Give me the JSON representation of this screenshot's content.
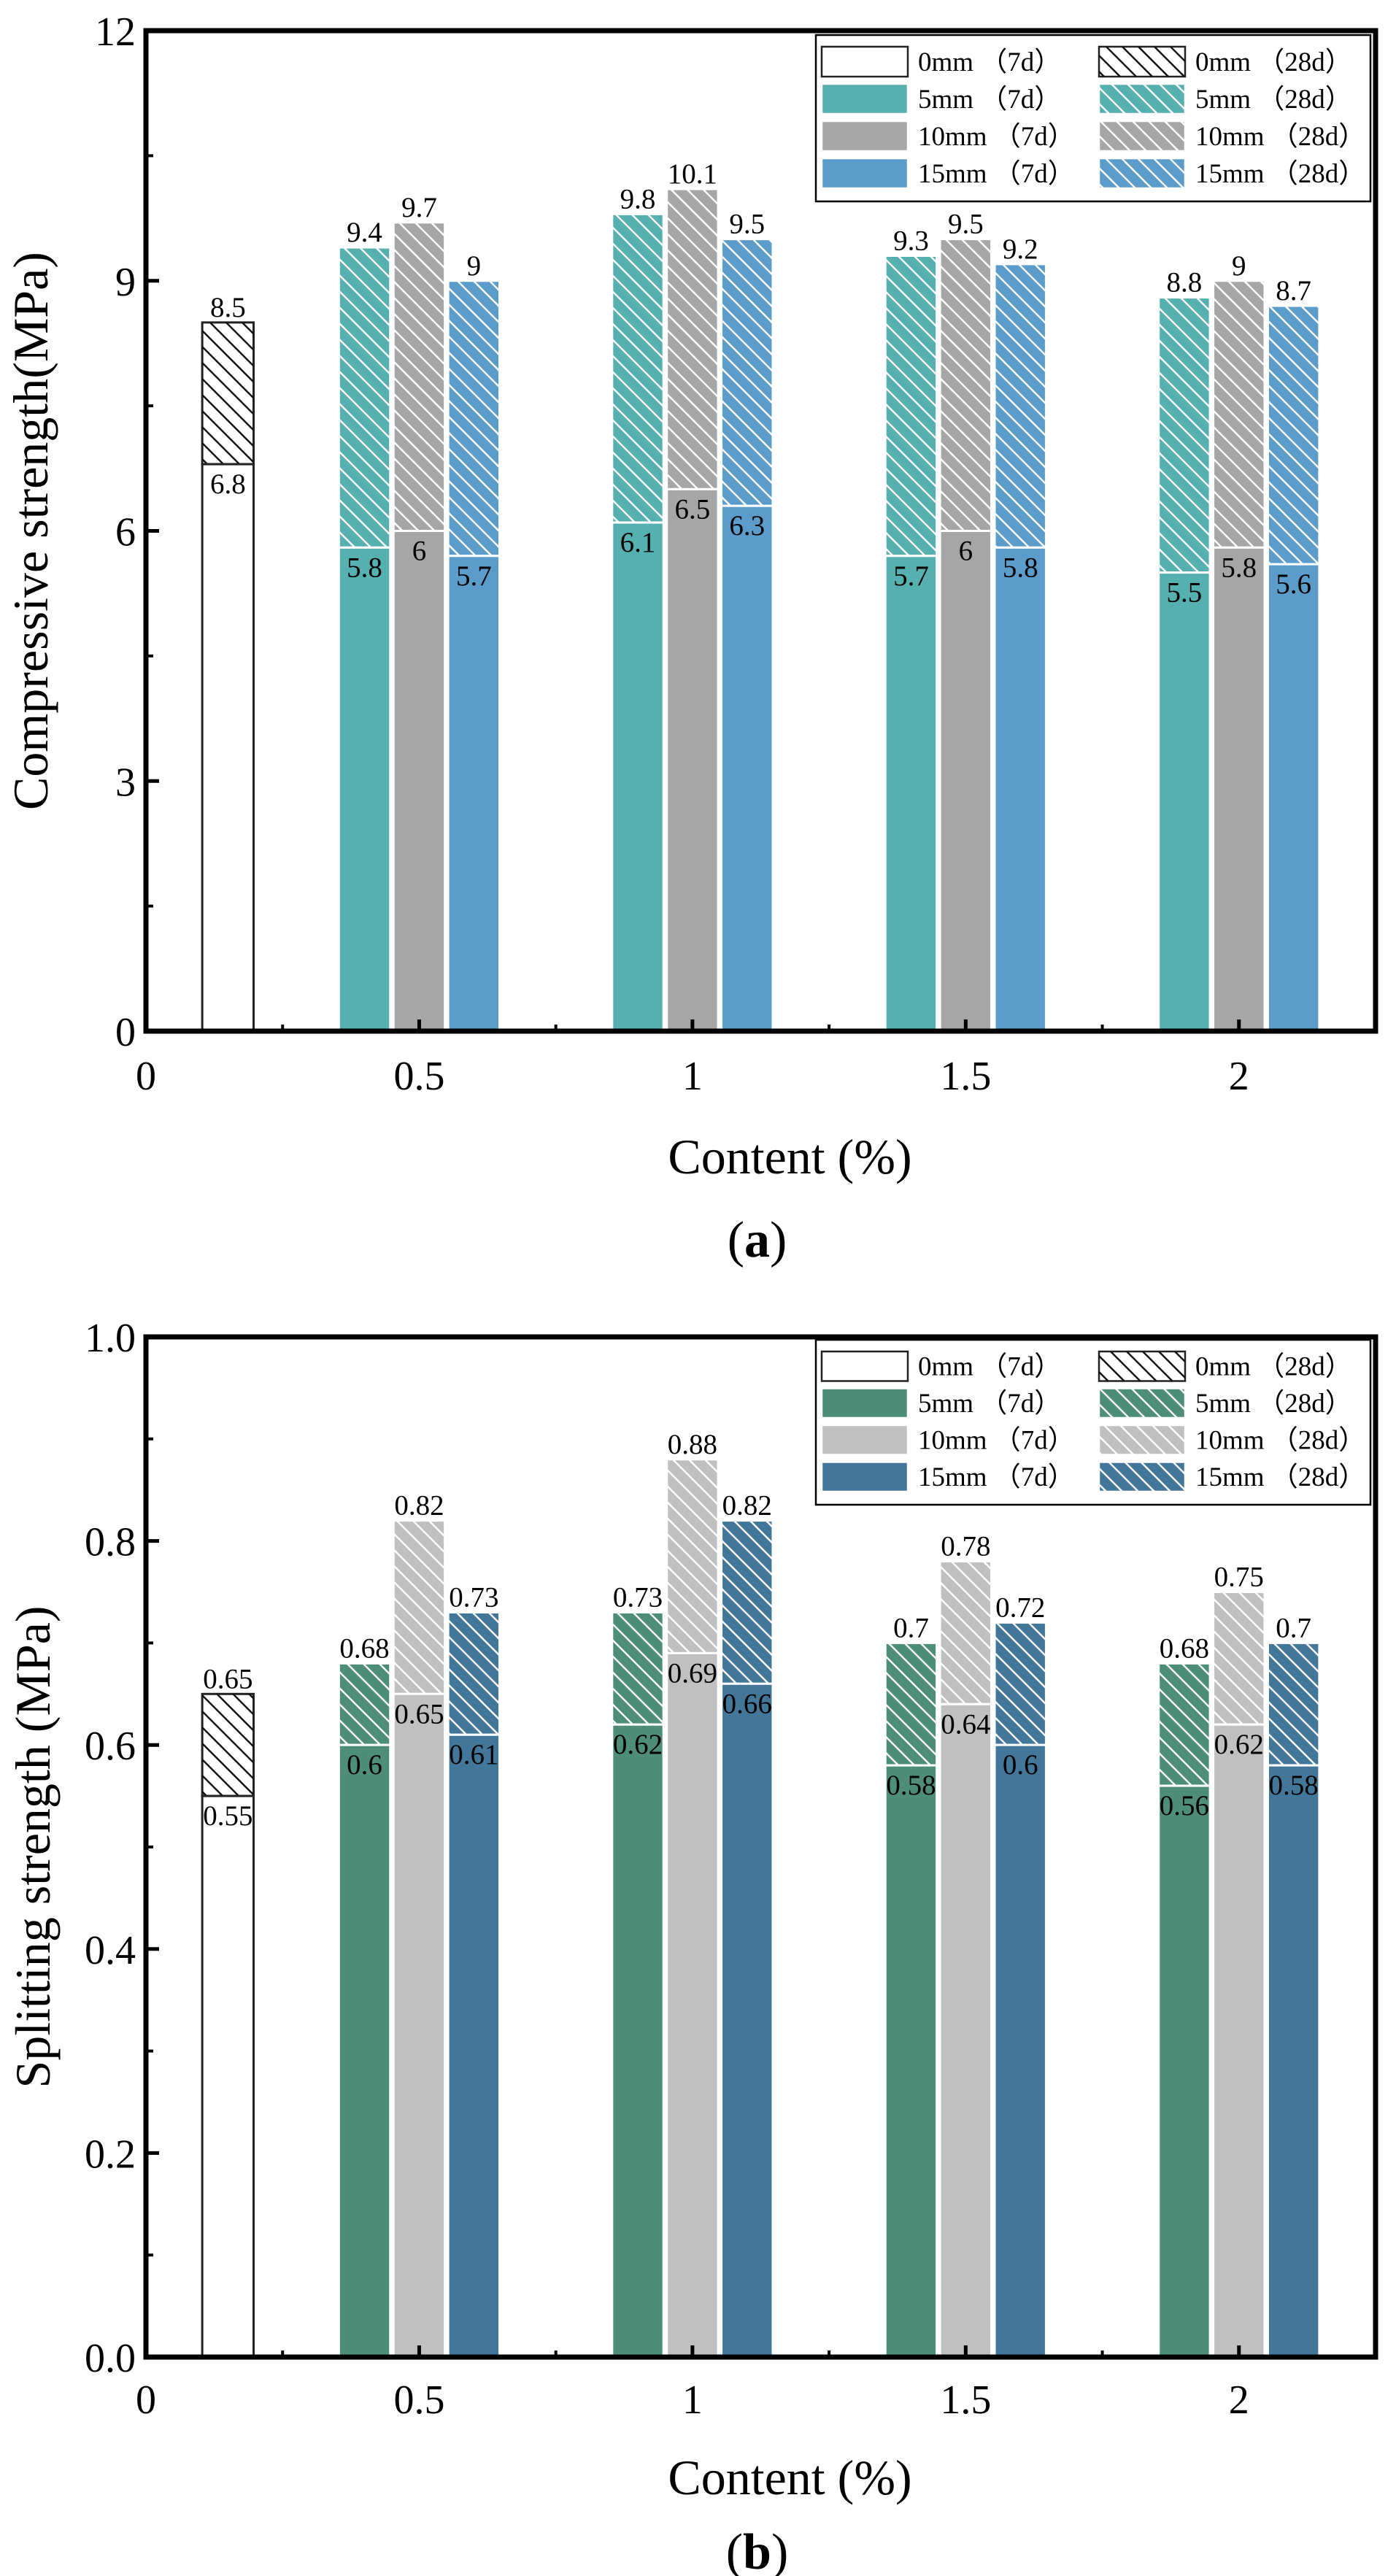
{
  "chart_data": [
    {
      "type": "bar",
      "stacked": true,
      "panel_label": "a",
      "ylabel": "Compressive strength(MPa)",
      "xlabel": "Content (%)",
      "ylim": [
        0,
        12
      ],
      "yticks": [
        "0",
        "3",
        "6",
        "9",
        "12"
      ],
      "xlim": [
        0,
        2.25
      ],
      "xticks": [
        "0",
        "0.5",
        "1",
        "1.5",
        "2"
      ],
      "control": {
        "name": "0mm",
        "x": 0.15,
        "v7": 6.8,
        "v28": 8.5
      },
      "categories": [
        0.5,
        1,
        1.5,
        2
      ],
      "series": [
        {
          "name": "5mm",
          "v7": [
            5.8,
            6.1,
            5.7,
            5.5
          ],
          "v28": [
            9.4,
            9.8,
            9.3,
            8.8
          ]
        },
        {
          "name": "10mm",
          "v7": [
            6,
            6.5,
            6,
            5.8
          ],
          "v28": [
            9.7,
            10.1,
            9.5,
            9
          ]
        },
        {
          "name": "15mm",
          "v7": [
            5.7,
            6.3,
            5.8,
            5.6
          ],
          "v28": [
            9,
            9.5,
            9.2,
            8.7
          ]
        }
      ],
      "colors": [
        "#56b0af",
        "#a6a6a6",
        "#5b9cca"
      ],
      "legend": [
        "0mm （7d）",
        "0mm （28d）",
        "5mm （7d）",
        "5mm （28d）",
        "10mm （7d）",
        "10mm （28d）",
        "15mm （7d）",
        "15mm （28d）"
      ]
    },
    {
      "type": "bar",
      "stacked": true,
      "panel_label": "b",
      "ylabel": "Splitting strength (MPa)",
      "xlabel": "Content (%)",
      "ylim": [
        0,
        1.0
      ],
      "yticks": [
        "0.0",
        "0.2",
        "0.4",
        "0.6",
        "0.8",
        "1.0"
      ],
      "xlim": [
        0,
        2.25
      ],
      "xticks": [
        "0",
        "0.5",
        "1",
        "1.5",
        "2"
      ],
      "control": {
        "name": "0mm",
        "x": 0.15,
        "v7": 0.55,
        "v28": 0.65
      },
      "categories": [
        0.5,
        1,
        1.5,
        2
      ],
      "series": [
        {
          "name": "5mm",
          "v7": [
            0.6,
            0.62,
            0.58,
            0.56
          ],
          "v28": [
            0.68,
            0.73,
            0.7,
            0.68
          ]
        },
        {
          "name": "10mm",
          "v7": [
            0.65,
            0.69,
            0.64,
            0.62
          ],
          "v28": [
            0.82,
            0.88,
            0.78,
            0.75
          ]
        },
        {
          "name": "15mm",
          "v7": [
            0.61,
            0.66,
            0.6,
            0.58
          ],
          "v28": [
            0.73,
            0.82,
            0.72,
            0.7
          ]
        }
      ],
      "colors": [
        "#4e8e78",
        "#c0c0c0",
        "#42779a"
      ],
      "legend": [
        "0mm （7d）",
        "0mm （28d）",
        "5mm （7d）",
        "5mm （28d）",
        "10mm （7d）",
        "10mm （28d）",
        "15mm （7d）",
        "15mm （28d）"
      ]
    }
  ]
}
